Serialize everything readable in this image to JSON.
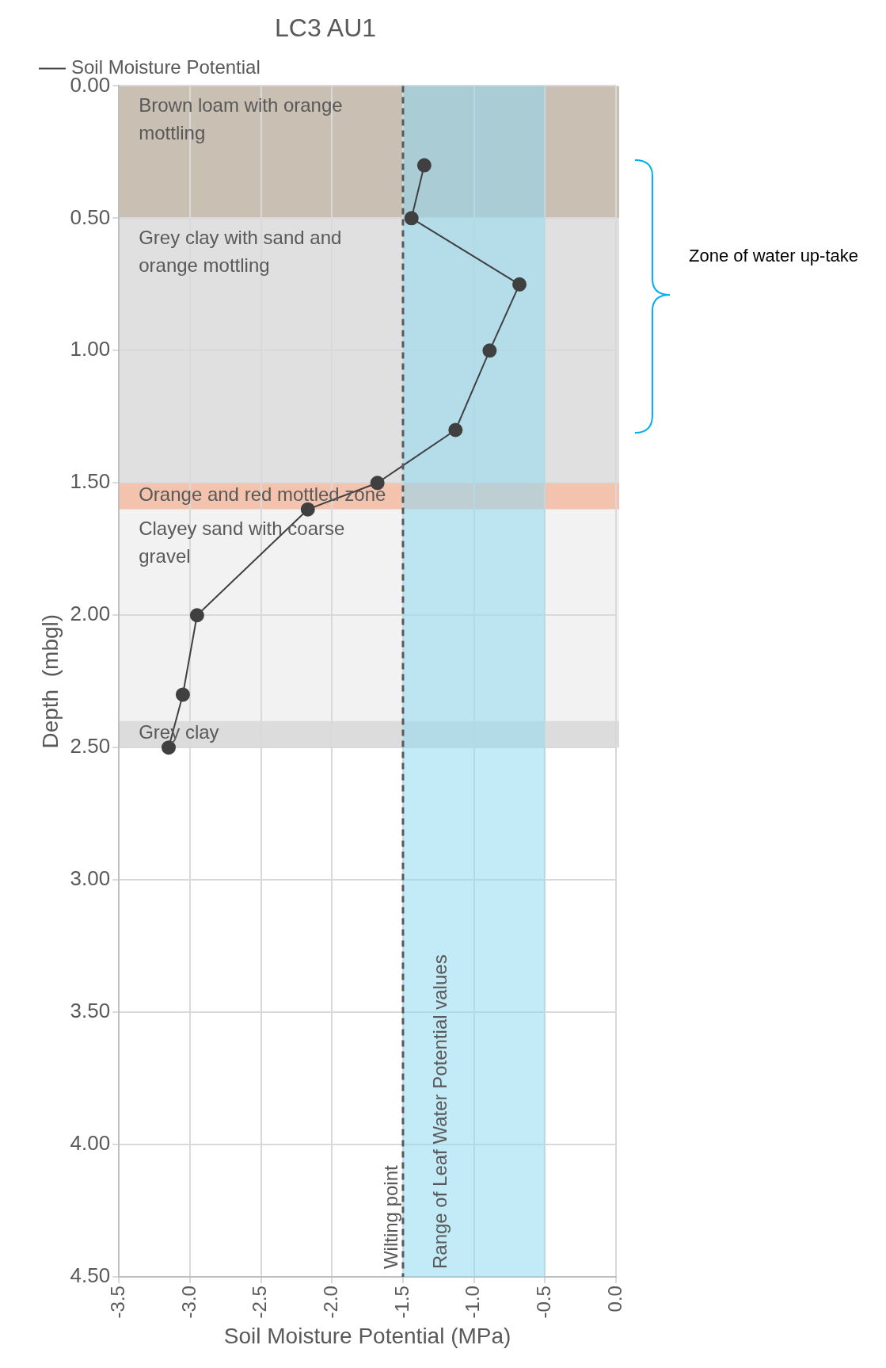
{
  "chart_data": {
    "type": "line",
    "title": "LC3 AU1",
    "xlabel": "Soil Moisture Potential (MPa)",
    "ylabel": "Depth  (mbgl)",
    "series": [
      {
        "name": "Soil Moisture Potential",
        "color": "#404040",
        "x": [
          -1.35,
          -1.44,
          -0.68,
          -0.89,
          -1.13,
          -1.68,
          -2.17,
          -2.95,
          -3.05,
          -3.15
        ],
        "values": [
          0.3,
          0.5,
          0.75,
          1.0,
          1.3,
          1.5,
          1.6,
          2.0,
          2.3,
          2.5
        ]
      }
    ],
    "xlim": [
      -3.5,
      0
    ],
    "xticks": [
      {
        "value": -3.5,
        "label": "-3.5"
      },
      {
        "value": -3,
        "label": "-3.0"
      },
      {
        "value": -2.5,
        "label": "-2.5"
      },
      {
        "value": -2,
        "label": "-2.0"
      },
      {
        "value": -1.5,
        "label": "-1.5"
      },
      {
        "value": -1,
        "label": "-1.0"
      },
      {
        "value": -0.5,
        "label": "-0.5"
      },
      {
        "value": 0,
        "label": "0.0"
      }
    ],
    "ylim": [
      4.5,
      0
    ],
    "yticks": [
      {
        "value": 0,
        "label": "0.00"
      },
      {
        "value": 0.5,
        "label": "0.50"
      },
      {
        "value": 1,
        "label": "1.00"
      },
      {
        "value": 1.5,
        "label": "1.50"
      },
      {
        "value": 2,
        "label": "2.00"
      },
      {
        "value": 2.5,
        "label": "2.50"
      },
      {
        "value": 3,
        "label": "3.00"
      },
      {
        "value": 3.5,
        "label": "3.50"
      },
      {
        "value": 4,
        "label": "4.00"
      },
      {
        "value": 4.5,
        "label": "4.50"
      }
    ],
    "bands": [
      {
        "axis": "y",
        "from": 0,
        "to": 0.5,
        "label": "Brown loam with orange mottling",
        "color": "#c9bfb3"
      },
      {
        "axis": "y",
        "from": 0.5,
        "to": 1.5,
        "label": "Grey clay with sand and orange mottling",
        "color": "#e0e0e0"
      },
      {
        "axis": "y",
        "from": 1.5,
        "to": 1.6,
        "label": "Orange and red mottled zone",
        "color": "#f4c3ad"
      },
      {
        "axis": "y",
        "from": 1.6,
        "to": 2.4,
        "label": "Clayey sand with coarse gravel",
        "color": "#f2f2f2"
      },
      {
        "axis": "y",
        "from": 2.4,
        "to": 2.5,
        "label": "Grey clay",
        "color": "#dcdcdc"
      },
      {
        "axis": "x",
        "from": -1.5,
        "to": -0.5,
        "label": "Range of Leaf Water Potential values",
        "color": "#8fd8f0"
      }
    ],
    "ref_lines": [
      {
        "axis": "x",
        "value": -1.5,
        "label": "Wilting point",
        "color": "#595959",
        "line_style": "dashed"
      }
    ],
    "annotations": [
      "Zone of water up-take"
    ],
    "grid": true,
    "legend": "top left",
    "marker": "circle",
    "line_style": "solid"
  }
}
